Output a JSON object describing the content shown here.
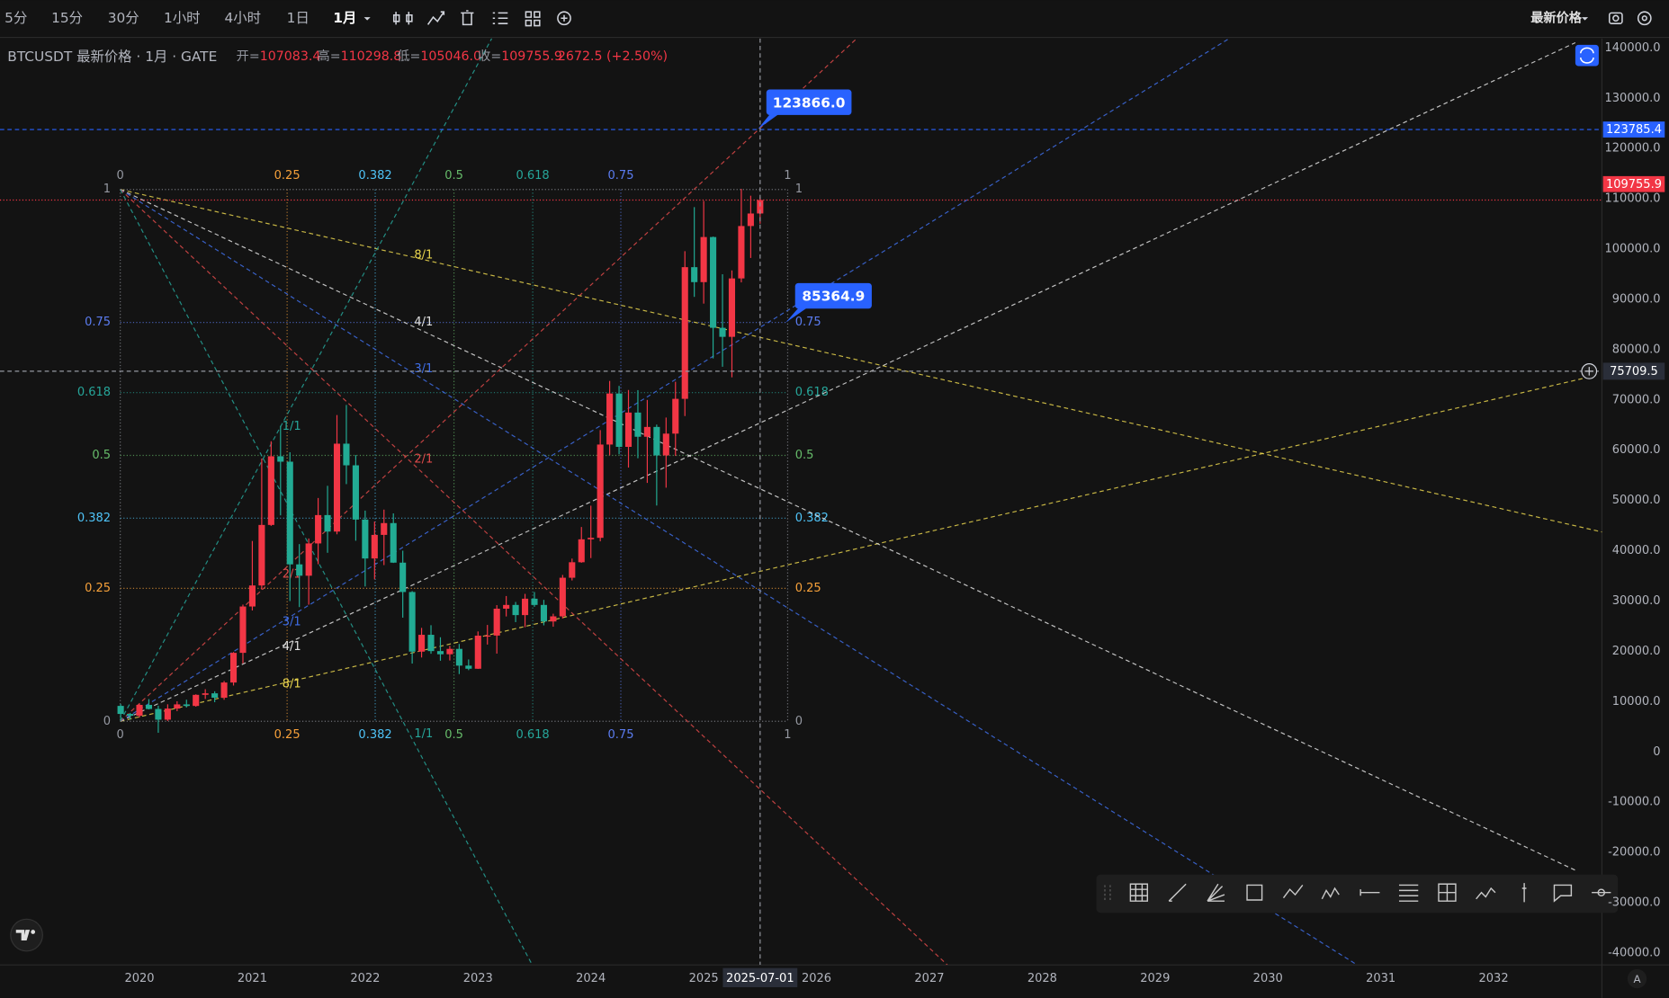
{
  "toolbar": {
    "intervals": [
      "5分",
      "15分",
      "30分",
      "1小时",
      "4小时",
      "1日",
      "1月"
    ],
    "active": 6,
    "price_mode": "最新价格"
  },
  "legend": {
    "symbol": "BTCUSDT 最新价格 · 1月 · GATE",
    "items": [
      {
        "label": "开=",
        "value": "107083.4"
      },
      {
        "label": "高=",
        "value": "110298.8"
      },
      {
        "label": "低=",
        "value": "105046.0"
      },
      {
        "label": "收=",
        "value": "109755.9"
      }
    ],
    "change": "2672.5 (+2.50%)"
  },
  "auto_button": "A",
  "chart_data": {
    "type": "candlestick",
    "up_color": "#f23645",
    "down_color": "#22ab94",
    "x": [
      "2019-11",
      "2019-12",
      "2020-01",
      "2020-02",
      "2020-03",
      "2020-04",
      "2020-05",
      "2020-06",
      "2020-07",
      "2020-08",
      "2020-09",
      "2020-10",
      "2020-11",
      "2020-12",
      "2021-01",
      "2021-02",
      "2021-03",
      "2021-04",
      "2021-05",
      "2021-06",
      "2021-07",
      "2021-08",
      "2021-09",
      "2021-10",
      "2021-11",
      "2021-12",
      "2022-01",
      "2022-02",
      "2022-03",
      "2022-04",
      "2022-05",
      "2022-06",
      "2022-07",
      "2022-08",
      "2022-09",
      "2022-10",
      "2022-11",
      "2022-12",
      "2023-01",
      "2023-02",
      "2023-03",
      "2023-04",
      "2023-05",
      "2023-06",
      "2023-07",
      "2023-08",
      "2023-09",
      "2023-10",
      "2023-11",
      "2023-12",
      "2024-01",
      "2024-02",
      "2024-03",
      "2024-04",
      "2024-05",
      "2024-06",
      "2024-07",
      "2024-08",
      "2024-09",
      "2024-10",
      "2024-11",
      "2024-12",
      "2025-01",
      "2025-02",
      "2025-03",
      "2025-04",
      "2025-05",
      "2025-06",
      "2025-07"
    ],
    "open": [
      9150,
      7550,
      7190,
      9350,
      8540,
      6410,
      8620,
      9450,
      9140,
      11350,
      11650,
      10780,
      13800,
      19700,
      28920,
      33100,
      45140,
      58800,
      57720,
      37300,
      35040,
      41460,
      47100,
      43820,
      61300,
      57000,
      46210,
      38470,
      43160,
      45510,
      37640,
      31800,
      19940,
      23290,
      20050,
      19420,
      20490,
      17160,
      16540,
      23120,
      23140,
      28480,
      29230,
      27210,
      30470,
      29230,
      25940,
      26960,
      34640,
      37720,
      42280,
      42580,
      61130,
      71280,
      60670,
      67490,
      62680,
      64630,
      58970,
      63300,
      70220,
      96410,
      93430,
      102400,
      84350,
      82550,
      94170,
      104590,
      107083.4
    ],
    "high": [
      9500,
      7750,
      9580,
      10500,
      9190,
      9470,
      10070,
      10380,
      11450,
      12470,
      12050,
      14100,
      19860,
      29300,
      41950,
      58350,
      61780,
      64850,
      59590,
      41330,
      42450,
      50500,
      52920,
      67000,
      69000,
      59050,
      47990,
      45820,
      48190,
      47440,
      40020,
      31980,
      24670,
      25200,
      22800,
      21080,
      21470,
      18390,
      23960,
      25250,
      29190,
      31000,
      29820,
      31430,
      31800,
      30240,
      27480,
      35200,
      38450,
      44730,
      48970,
      64000,
      73780,
      72800,
      71980,
      71950,
      70000,
      65100,
      66500,
      73620,
      99590,
      108350,
      109590,
      102500,
      95000,
      95760,
      111980,
      110620,
      110298.8
    ],
    "low": [
      6500,
      6430,
      6850,
      8450,
      3800,
      6150,
      8100,
      8830,
      8990,
      10530,
      9880,
      10370,
      13200,
      17600,
      28130,
      32300,
      44950,
      47040,
      30000,
      28800,
      29280,
      37330,
      39600,
      43290,
      53260,
      42000,
      32900,
      34320,
      37150,
      37580,
      26700,
      17570,
      18780,
      19520,
      18130,
      18180,
      15480,
      16260,
      16500,
      21350,
      19550,
      26940,
      25810,
      24800,
      28860,
      25170,
      24900,
      26540,
      34100,
      37620,
      38550,
      41880,
      59000,
      59190,
      56550,
      58400,
      53500,
      49000,
      52550,
      58870,
      66800,
      90500,
      89160,
      78260,
      76600,
      74500,
      93380,
      98240,
      105046
    ],
    "close": [
      7550,
      7190,
      9350,
      8540,
      6410,
      8620,
      9450,
      9140,
      11350,
      11650,
      10780,
      13800,
      19700,
      28920,
      33100,
      45140,
      58800,
      57720,
      37300,
      35040,
      41460,
      47100,
      43820,
      61300,
      57000,
      46210,
      38470,
      43160,
      45510,
      37640,
      31800,
      19940,
      23290,
      20050,
      19420,
      20490,
      17160,
      16540,
      23120,
      23140,
      28480,
      29230,
      27210,
      30470,
      29230,
      25940,
      26960,
      34640,
      37720,
      42280,
      42580,
      61130,
      71280,
      60670,
      67490,
      62680,
      64630,
      58970,
      63300,
      70220,
      96410,
      93430,
      102400,
      84350,
      82550,
      94170,
      104590,
      107080,
      109755.9
    ],
    "xlim": [
      2018.764,
      2032.96
    ],
    "xticks": [
      2020,
      2021,
      2022,
      2023,
      2024,
      2025,
      2026,
      2027,
      2028,
      2029,
      2030,
      2031,
      2032
    ],
    "ylim": [
      -42360,
      141900
    ],
    "yticks": [
      {
        "value": 140000,
        "label": "140000.0"
      },
      {
        "value": 130000,
        "label": "130000.0"
      },
      {
        "value": 120000,
        "label": "120000.0"
      },
      {
        "value": 110000,
        "label": "110000.0"
      },
      {
        "value": 100000,
        "label": "100000.0"
      },
      {
        "value": 90000,
        "label": "90000.0"
      },
      {
        "value": 80000,
        "label": "80000.0"
      },
      {
        "value": 70000,
        "label": "70000.0"
      },
      {
        "value": 60000,
        "label": "60000.0"
      },
      {
        "value": 50000,
        "label": "50000.0"
      },
      {
        "value": 40000,
        "label": "40000.0"
      },
      {
        "value": 30000,
        "label": "30000.0"
      },
      {
        "value": 20000,
        "label": "20000.0"
      },
      {
        "value": 10000,
        "label": "10000.0"
      },
      0,
      {
        "value": -10000,
        "label": "-10000.0"
      },
      {
        "value": -20000,
        "label": "-20000.0"
      },
      {
        "value": -30000,
        "label": "-30000.0"
      },
      {
        "value": -40000,
        "label": "-40000.0"
      }
    ],
    "grid": false,
    "price_lines": [
      {
        "value": 123785.4,
        "color": "#2962ff"
      },
      {
        "value": 109755.9,
        "color": "#f23645"
      }
    ],
    "crosshair": {
      "x": "2025-07-01",
      "price": 75709.5
    },
    "annotations": [
      {
        "value": 123866,
        "label": "123866.0"
      },
      85364.9
    ],
    "gann": {
      "levels": [
        0,
        0.25,
        0.382,
        0.5,
        0.618,
        0.75,
        1
      ],
      "level_colors": [
        "#9598a1",
        "#f7a13a",
        "#4fc3f7",
        "#66bb6a",
        "#26a69a",
        "#5b7cf0",
        "#9598a1"
      ],
      "fans": [
        "8/1",
        "4/1",
        "3/1",
        "2/1",
        "1/1"
      ],
      "fan_colors": [
        "#e8d44d",
        "#e0e0e0",
        "#3f6ee8",
        "#e04a4a",
        "#26a69a"
      ]
    }
  }
}
